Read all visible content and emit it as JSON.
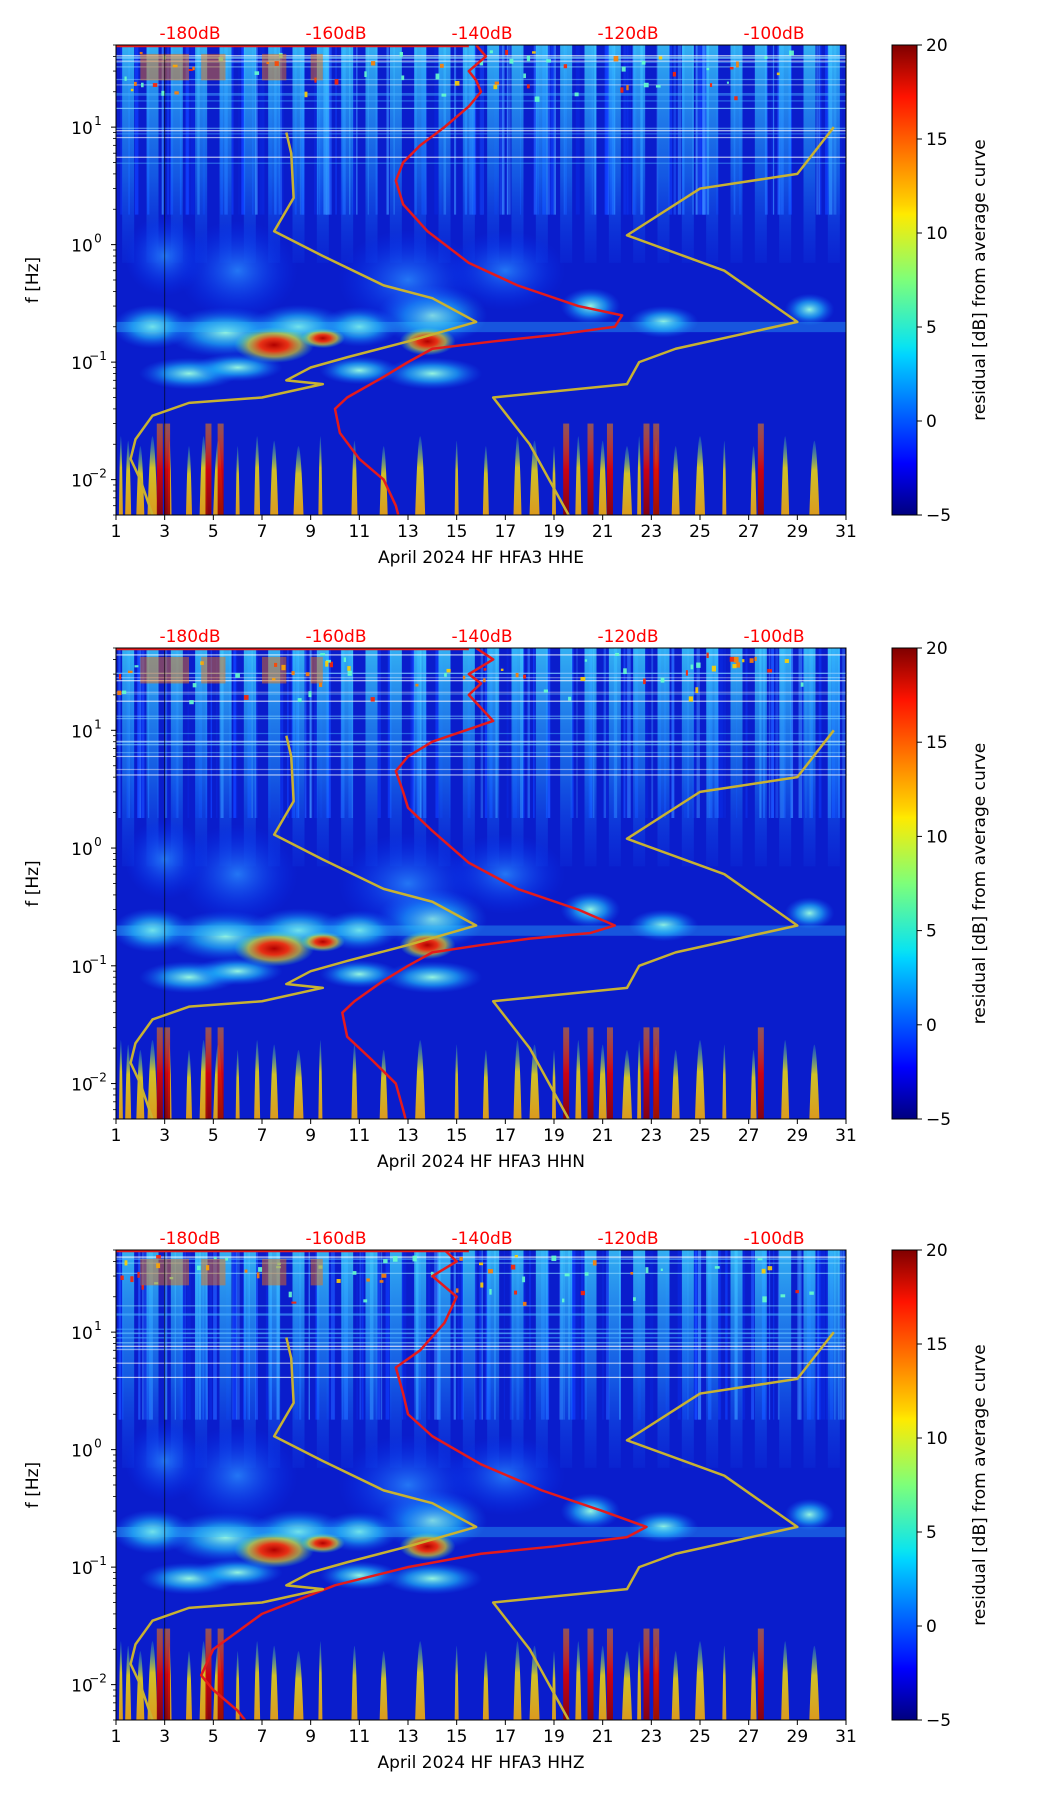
{
  "chart_data": [
    {
      "type": "heatmap",
      "id": "hhe",
      "xlabel": "April 2024 HF HFA3  HHE",
      "ylabel": "f [Hz]",
      "xlim": [
        1,
        31
      ],
      "ylim": [
        0.005,
        50
      ],
      "yscale": "log",
      "x_ticks": [
        "1",
        "3",
        "5",
        "7",
        "9",
        "11",
        "13",
        "15",
        "17",
        "19",
        "21",
        "23",
        "25",
        "27",
        "29",
        "31"
      ],
      "y_ticks": [
        {
          "label": "10",
          "sup": "1",
          "value": 10
        },
        {
          "label": "10",
          "sup": "0",
          "value": 1
        },
        {
          "label": "10",
          "sup": "−1",
          "value": 0.1
        },
        {
          "label": "10",
          "sup": "−2",
          "value": 0.01
        }
      ],
      "top_axis_labels": [
        "-180dB",
        "-160dB",
        "-140dB",
        "-120dB",
        "-100dB"
      ],
      "colorbar": {
        "label": "residual [dB] from average curve",
        "min": -5,
        "max": 20,
        "ticks": [
          "20",
          "15",
          "10",
          "5",
          "0",
          "−5"
        ]
      },
      "series": [
        {
          "name": "average PSD curve (top dB axis)",
          "color": "#e41a1c",
          "points": [
            [
              15.8,
              50
            ],
            [
              16.2,
              40
            ],
            [
              15.5,
              30
            ],
            [
              15.8,
              25
            ],
            [
              16,
              20
            ],
            [
              15.5,
              15
            ],
            [
              14.5,
              10
            ],
            [
              13.5,
              7
            ],
            [
              12.8,
              5
            ],
            [
              12.5,
              3.5
            ],
            [
              12.8,
              2.2
            ],
            [
              13.8,
              1.3
            ],
            [
              15.5,
              0.7
            ],
            [
              17.5,
              0.45
            ],
            [
              20,
              0.3
            ],
            [
              21.8,
              0.25
            ],
            [
              21.5,
              0.2
            ],
            [
              19,
              0.17
            ],
            [
              16.5,
              0.15
            ],
            [
              14,
              0.13
            ],
            [
              13,
              0.1
            ],
            [
              12,
              0.075
            ],
            [
              10.5,
              0.05
            ],
            [
              10,
              0.04
            ],
            [
              10.2,
              0.025
            ],
            [
              11,
              0.015
            ],
            [
              12,
              0.01
            ],
            [
              12.5,
              0.006
            ],
            [
              12.6,
              0.005
            ]
          ]
        },
        {
          "name": "noise model envelope (top dB axis)",
          "color": "#c8b232",
          "points_low": [
            [
              8,
              9
            ],
            [
              8.2,
              6
            ],
            [
              8.3,
              2.5
            ],
            [
              7.5,
              1.3
            ],
            [
              9.5,
              0.8
            ],
            [
              12,
              0.45
            ],
            [
              14,
              0.35
            ],
            [
              15.8,
              0.22
            ],
            [
              13,
              0.15
            ],
            [
              10.5,
              0.11
            ],
            [
              9,
              0.09
            ],
            [
              8,
              0.07
            ],
            [
              9.5,
              0.065
            ],
            [
              7,
              0.05
            ],
            [
              4,
              0.045
            ],
            [
              2.5,
              0.035
            ],
            [
              1.8,
              0.022
            ],
            [
              1.6,
              0.015
            ],
            [
              2,
              0.01
            ],
            [
              2.5,
              0.005
            ]
          ],
          "points_high": [
            [
              30.5,
              10
            ],
            [
              29,
              4
            ],
            [
              25,
              3
            ],
            [
              22,
              1.2
            ],
            [
              26,
              0.6
            ],
            [
              29,
              0.22
            ],
            [
              24,
              0.13
            ],
            [
              22.5,
              0.1
            ],
            [
              22,
              0.065
            ],
            [
              16.5,
              0.05
            ],
            [
              18,
              0.02
            ],
            [
              19.6,
              0.005
            ]
          ]
        }
      ]
    },
    {
      "type": "heatmap",
      "id": "hhn",
      "xlabel": "April 2024 HF HFA3  HHN",
      "ylabel": "f [Hz]",
      "xlim": [
        1,
        31
      ],
      "ylim": [
        0.005,
        50
      ],
      "yscale": "log",
      "x_ticks": [
        "1",
        "3",
        "5",
        "7",
        "9",
        "11",
        "13",
        "15",
        "17",
        "19",
        "21",
        "23",
        "25",
        "27",
        "29",
        "31"
      ],
      "y_ticks": [
        {
          "label": "10",
          "sup": "1",
          "value": 10
        },
        {
          "label": "10",
          "sup": "0",
          "value": 1
        },
        {
          "label": "10",
          "sup": "−1",
          "value": 0.1
        },
        {
          "label": "10",
          "sup": "−2",
          "value": 0.01
        }
      ],
      "top_axis_labels": [
        "-180dB",
        "-160dB",
        "-140dB",
        "-120dB",
        "-100dB"
      ],
      "colorbar": {
        "label": "residual [dB] from average curve",
        "min": -5,
        "max": 20,
        "ticks": [
          "20",
          "15",
          "10",
          "5",
          "0",
          "−5"
        ]
      },
      "series": [
        {
          "name": "average PSD curve (top dB axis)",
          "color": "#e41a1c",
          "points": [
            [
              15.8,
              50
            ],
            [
              16.5,
              40
            ],
            [
              15.5,
              30
            ],
            [
              16,
              25
            ],
            [
              15.5,
              20
            ],
            [
              16.5,
              12
            ],
            [
              14,
              8
            ],
            [
              13,
              6
            ],
            [
              12.5,
              4.5
            ],
            [
              12.8,
              3
            ],
            [
              13,
              2.2
            ],
            [
              14,
              1.4
            ],
            [
              15.5,
              0.75
            ],
            [
              17.5,
              0.45
            ],
            [
              20,
              0.3
            ],
            [
              21.5,
              0.22
            ],
            [
              20.5,
              0.19
            ],
            [
              18,
              0.17
            ],
            [
              16,
              0.15
            ],
            [
              14,
              0.13
            ],
            [
              13,
              0.1
            ],
            [
              12,
              0.075
            ],
            [
              10.8,
              0.05
            ],
            [
              10.3,
              0.04
            ],
            [
              10.5,
              0.025
            ],
            [
              11.5,
              0.016
            ],
            [
              12.5,
              0.01
            ],
            [
              12.8,
              0.006
            ],
            [
              12.9,
              0.005
            ]
          ]
        },
        {
          "name": "noise model envelope (top dB axis)",
          "color": "#c8b232",
          "points_low": [
            [
              8,
              9
            ],
            [
              8.2,
              6
            ],
            [
              8.3,
              2.5
            ],
            [
              7.5,
              1.3
            ],
            [
              9.5,
              0.8
            ],
            [
              12,
              0.45
            ],
            [
              14,
              0.35
            ],
            [
              15.8,
              0.22
            ],
            [
              13,
              0.15
            ],
            [
              10.5,
              0.11
            ],
            [
              9,
              0.09
            ],
            [
              8,
              0.07
            ],
            [
              9.5,
              0.065
            ],
            [
              7,
              0.05
            ],
            [
              4,
              0.045
            ],
            [
              2.5,
              0.035
            ],
            [
              1.8,
              0.022
            ],
            [
              1.6,
              0.015
            ],
            [
              2,
              0.01
            ],
            [
              2.5,
              0.005
            ]
          ],
          "points_high": [
            [
              30.5,
              10
            ],
            [
              29,
              4
            ],
            [
              25,
              3
            ],
            [
              22,
              1.2
            ],
            [
              26,
              0.6
            ],
            [
              29,
              0.22
            ],
            [
              24,
              0.13
            ],
            [
              22.5,
              0.1
            ],
            [
              22,
              0.065
            ],
            [
              16.5,
              0.05
            ],
            [
              18,
              0.02
            ],
            [
              19.6,
              0.005
            ]
          ]
        }
      ]
    },
    {
      "type": "heatmap",
      "id": "hhz",
      "xlabel": "April 2024 HF HFA3  HHZ",
      "ylabel": "f [Hz]",
      "xlim": [
        1,
        31
      ],
      "ylim": [
        0.005,
        50
      ],
      "yscale": "log",
      "x_ticks": [
        "1",
        "3",
        "5",
        "7",
        "9",
        "11",
        "13",
        "15",
        "17",
        "19",
        "21",
        "23",
        "25",
        "27",
        "29",
        "31"
      ],
      "y_ticks": [
        {
          "label": "10",
          "sup": "1",
          "value": 10
        },
        {
          "label": "10",
          "sup": "0",
          "value": 1
        },
        {
          "label": "10",
          "sup": "−1",
          "value": 0.1
        },
        {
          "label": "10",
          "sup": "−2",
          "value": 0.01
        }
      ],
      "top_axis_labels": [
        "-180dB",
        "-160dB",
        "-140dB",
        "-120dB",
        "-100dB"
      ],
      "colorbar": {
        "label": "residual [dB] from average curve",
        "min": -5,
        "max": 20,
        "ticks": [
          "20",
          "15",
          "10",
          "5",
          "0",
          "−5"
        ]
      },
      "series": [
        {
          "name": "average PSD curve (top dB axis)",
          "color": "#e41a1c",
          "points": [
            [
              14.5,
              50
            ],
            [
              15,
              40
            ],
            [
              14,
              30
            ],
            [
              15,
              20
            ],
            [
              14.5,
              12
            ],
            [
              13.5,
              7
            ],
            [
              12.5,
              5
            ],
            [
              12.8,
              3
            ],
            [
              13,
              2
            ],
            [
              14,
              1.3
            ],
            [
              16,
              0.75
            ],
            [
              18.5,
              0.45
            ],
            [
              21,
              0.3
            ],
            [
              22.8,
              0.22
            ],
            [
              22,
              0.18
            ],
            [
              19,
              0.15
            ],
            [
              16,
              0.13
            ],
            [
              13,
              0.1
            ],
            [
              10,
              0.07
            ],
            [
              7,
              0.04
            ],
            [
              5,
              0.02
            ],
            [
              4.5,
              0.012
            ],
            [
              5,
              0.009
            ],
            [
              6,
              0.006
            ],
            [
              6.3,
              0.005
            ]
          ]
        },
        {
          "name": "noise model envelope (top dB axis)",
          "color": "#c8b232",
          "points_low": [
            [
              8,
              9
            ],
            [
              8.2,
              6
            ],
            [
              8.3,
              2.5
            ],
            [
              7.5,
              1.3
            ],
            [
              9.5,
              0.8
            ],
            [
              12,
              0.45
            ],
            [
              14,
              0.35
            ],
            [
              15.8,
              0.22
            ],
            [
              13,
              0.15
            ],
            [
              10.5,
              0.11
            ],
            [
              9,
              0.09
            ],
            [
              8,
              0.07
            ],
            [
              9.5,
              0.065
            ],
            [
              7,
              0.05
            ],
            [
              4,
              0.045
            ],
            [
              2.5,
              0.035
            ],
            [
              1.8,
              0.022
            ],
            [
              1.6,
              0.015
            ],
            [
              2,
              0.01
            ],
            [
              2.5,
              0.005
            ]
          ],
          "points_high": [
            [
              30.5,
              10
            ],
            [
              29,
              4
            ],
            [
              25,
              3
            ],
            [
              22,
              1.2
            ],
            [
              26,
              0.6
            ],
            [
              29,
              0.22
            ],
            [
              24,
              0.13
            ],
            [
              22.5,
              0.1
            ],
            [
              22,
              0.065
            ],
            [
              16.5,
              0.05
            ],
            [
              18,
              0.02
            ],
            [
              19.6,
              0.005
            ]
          ]
        }
      ]
    }
  ]
}
